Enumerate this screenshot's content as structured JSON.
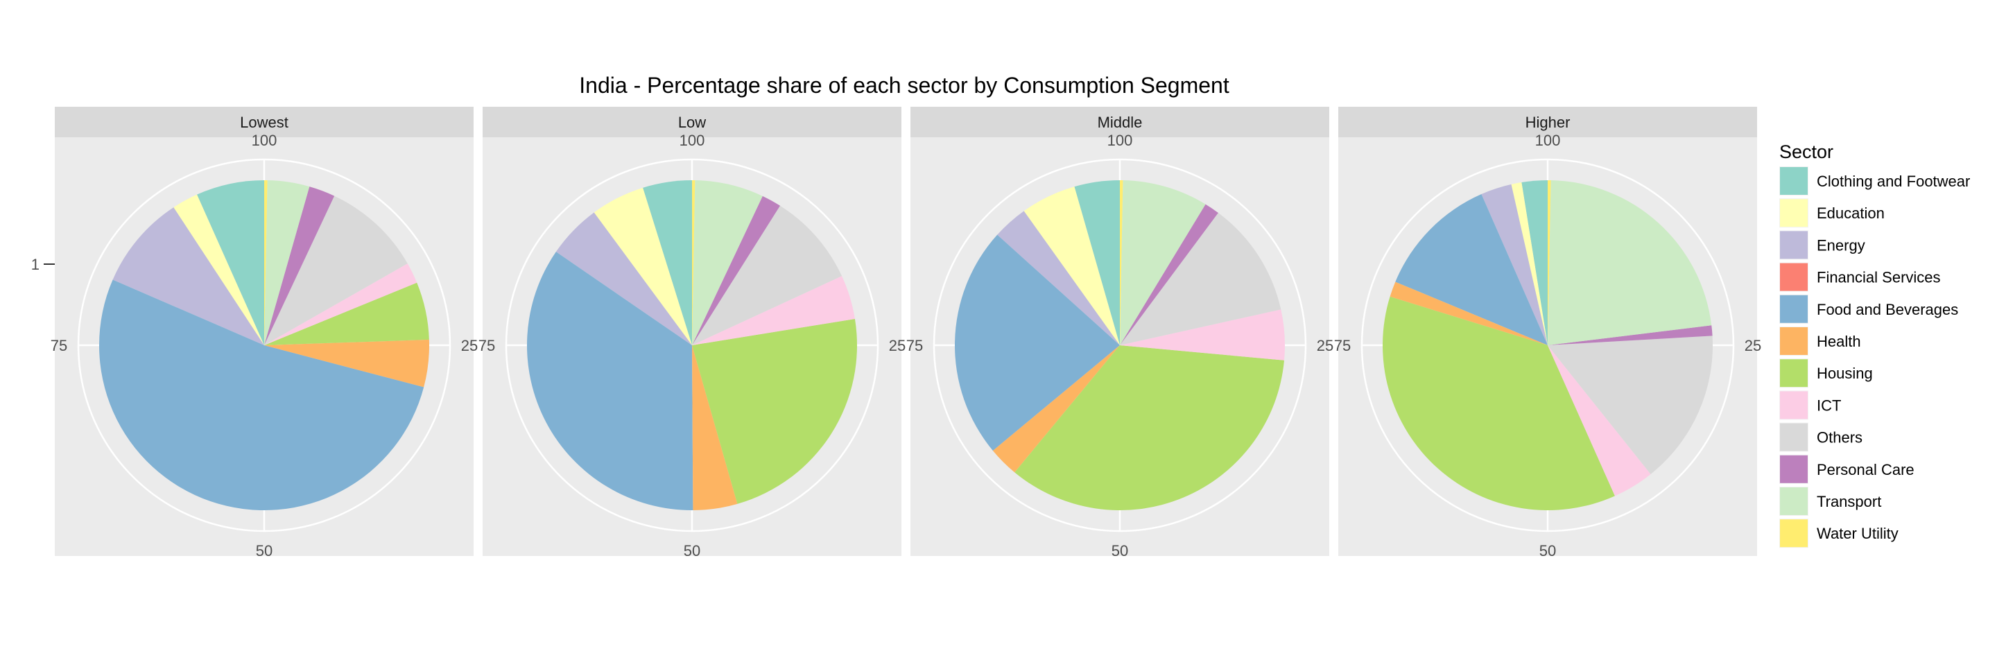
{
  "chart_data": {
    "type": "pie",
    "title": "India - Percentage share of each sector by Consumption Segment",
    "y_axis_tick": "1",
    "angle_ticks": [
      "100",
      "25",
      "50",
      "75"
    ],
    "legend": {
      "title": "Sector",
      "placement": "right",
      "entries": [
        {
          "name": "Clothing and Footwear",
          "color": "#8DD3C7"
        },
        {
          "name": "Education",
          "color": "#FFFFB3"
        },
        {
          "name": "Energy",
          "color": "#BEBADA"
        },
        {
          "name": "Financial Services",
          "color": "#FB8072"
        },
        {
          "name": "Food and Beverages",
          "color": "#80B1D3"
        },
        {
          "name": "Health",
          "color": "#FDB462"
        },
        {
          "name": "Housing",
          "color": "#B3DE69"
        },
        {
          "name": "ICT",
          "color": "#FCCDE5"
        },
        {
          "name": "Others",
          "color": "#D9D9D9"
        },
        {
          "name": "Personal Care",
          "color": "#BC80BD"
        },
        {
          "name": "Transport",
          "color": "#CCEBC5"
        },
        {
          "name": "Water Utility",
          "color": "#FFED6F"
        }
      ]
    },
    "categories": [
      "Clothing and Footwear",
      "Education",
      "Energy",
      "Financial Services",
      "Food and Beverages",
      "Health",
      "Housing",
      "ICT",
      "Others",
      "Personal Care",
      "Transport",
      "Water Utility"
    ],
    "panels": [
      {
        "label": "Lowest",
        "values": [
          6.5,
          2.5,
          9.0,
          0.0,
          51.0,
          4.5,
          5.5,
          2.0,
          9.5,
          2.5,
          4.0,
          0.3
        ]
      },
      {
        "label": "Low",
        "values": [
          5.0,
          5.5,
          5.5,
          0.0,
          36.0,
          4.5,
          24.0,
          4.5,
          9.5,
          2.0,
          7.0,
          0.3
        ]
      },
      {
        "label": "Middle",
        "values": [
          4.5,
          5.5,
          3.5,
          0.0,
          23.0,
          3.0,
          35.0,
          5.0,
          11.5,
          1.5,
          8.5,
          0.3
        ]
      },
      {
        "label": "Higher",
        "values": [
          2.5,
          1.0,
          3.0,
          0.0,
          12.0,
          1.5,
          36.0,
          4.0,
          15.0,
          1.0,
          22.5,
          0.3
        ]
      }
    ]
  }
}
